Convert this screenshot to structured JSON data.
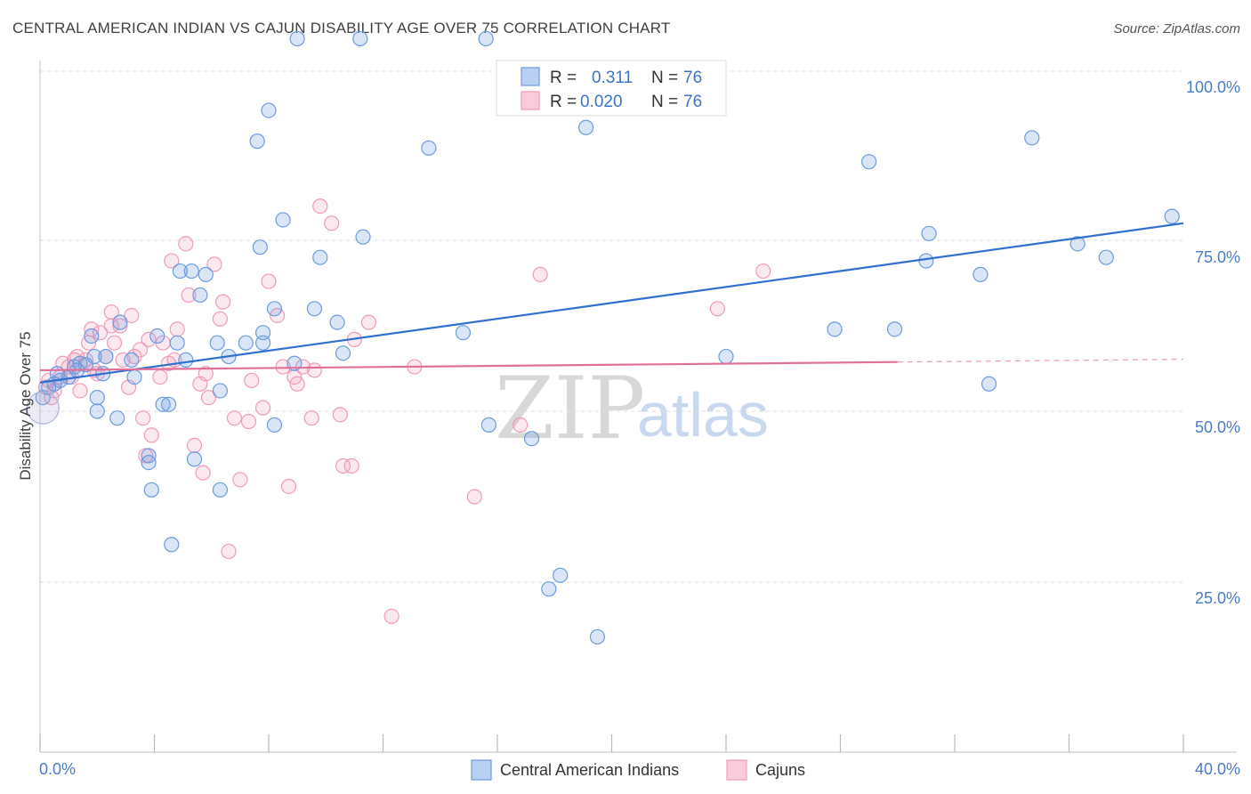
{
  "title": "CENTRAL AMERICAN INDIAN VS CAJUN DISABILITY AGE OVER 75 CORRELATION CHART",
  "source": "Source: ZipAtlas.com",
  "watermark": {
    "zip": "ZIP",
    "atlas": "atlas"
  },
  "legend": {
    "r_label": "R =",
    "n_label": "N =",
    "series": [
      {
        "r": "0.311",
        "n": "76"
      },
      {
        "r": "0.020",
        "n": "76"
      }
    ]
  },
  "bottom_legend": [
    "Central American Indians",
    "Cajuns"
  ],
  "chart_data": {
    "type": "scatter",
    "title": "CENTRAL AMERICAN INDIAN VS CAJUN DISABILITY AGE OVER 75 CORRELATION CHART",
    "xlabel": "",
    "ylabel": "Disability Age Over 75",
    "xlim": [
      0,
      40
    ],
    "ylim": [
      0,
      100
    ],
    "x_tick_labels": [
      "0.0%",
      "40.0%"
    ],
    "y_tick_labels": [
      "100.0%",
      "75.0%",
      "50.0%",
      "25.0%"
    ],
    "y_ticks": [
      100,
      75,
      50,
      25
    ],
    "colors": {
      "blue": "#6b9be0",
      "pink": "#f09ab8",
      "blue_line": "#2f6fcf",
      "pink_line": "#e0709a"
    },
    "series": [
      {
        "name": "Central American Indians",
        "r": 0.311,
        "n": 76,
        "trend": {
          "x0": 0,
          "y0": 54.2,
          "x1": 40,
          "y1": 77.5
        },
        "points": [
          [
            0.3,
            53.5
          ],
          [
            0.5,
            54.0
          ],
          [
            0.6,
            55.5
          ],
          [
            0.7,
            54.5
          ],
          [
            1.0,
            55.0
          ],
          [
            1.2,
            56.5
          ],
          [
            1.3,
            56.0
          ],
          [
            1.4,
            57.0
          ],
          [
            1.6,
            56.8
          ],
          [
            1.8,
            61.0
          ],
          [
            1.9,
            58.0
          ],
          [
            2.0,
            52.0
          ],
          [
            2.0,
            50.0
          ],
          [
            2.2,
            55.5
          ],
          [
            2.3,
            58.0
          ],
          [
            2.7,
            49.0
          ],
          [
            2.8,
            63.0
          ],
          [
            3.2,
            57.5
          ],
          [
            3.3,
            55.0
          ],
          [
            3.8,
            43.5
          ],
          [
            3.8,
            42.5
          ],
          [
            3.9,
            38.5
          ],
          [
            4.1,
            61.0
          ],
          [
            4.3,
            51.0
          ],
          [
            4.5,
            51.0
          ],
          [
            4.6,
            30.5
          ],
          [
            4.8,
            60.0
          ],
          [
            4.9,
            70.5
          ],
          [
            5.1,
            57.5
          ],
          [
            5.3,
            70.5
          ],
          [
            5.4,
            43.0
          ],
          [
            5.6,
            67.0
          ],
          [
            5.8,
            70.0
          ],
          [
            6.2,
            60.0
          ],
          [
            6.3,
            53.0
          ],
          [
            6.3,
            38.5
          ],
          [
            6.6,
            58.0
          ],
          [
            7.2,
            60.0
          ],
          [
            7.6,
            89.5
          ],
          [
            7.7,
            74.0
          ],
          [
            7.8,
            60.0
          ],
          [
            7.8,
            61.5
          ],
          [
            8.0,
            94.0
          ],
          [
            8.2,
            48.0
          ],
          [
            8.2,
            65.0
          ],
          [
            8.5,
            78.0
          ],
          [
            8.9,
            57.0
          ],
          [
            9.0,
            104.5
          ],
          [
            9.6,
            65.0
          ],
          [
            9.8,
            72.5
          ],
          [
            10.4,
            63.0
          ],
          [
            10.6,
            58.5
          ],
          [
            11.2,
            104.5
          ],
          [
            11.3,
            75.5
          ],
          [
            13.6,
            88.5
          ],
          [
            14.8,
            61.5
          ],
          [
            15.6,
            104.5
          ],
          [
            15.7,
            48.0
          ],
          [
            17.2,
            46.0
          ],
          [
            17.8,
            24.0
          ],
          [
            18.2,
            26.0
          ],
          [
            19.1,
            91.5
          ],
          [
            19.5,
            17.0
          ],
          [
            24.0,
            58.0
          ],
          [
            27.8,
            62.0
          ],
          [
            29.0,
            86.5
          ],
          [
            29.9,
            62.0
          ],
          [
            31.0,
            72.0
          ],
          [
            31.1,
            76.0
          ],
          [
            32.9,
            70.0
          ],
          [
            33.2,
            54.0
          ],
          [
            34.7,
            90.0
          ],
          [
            36.3,
            74.5
          ],
          [
            37.3,
            72.5
          ],
          [
            39.6,
            78.5
          ],
          [
            0.1,
            52.0
          ]
        ]
      },
      {
        "name": "Cajuns",
        "r": 0.02,
        "n": 76,
        "trend": {
          "x0": 0,
          "y0": 56.0,
          "x1": 30.0,
          "y1": 57.2,
          "dash_to": 40,
          "dash_y1": 57.6
        },
        "points": [
          [
            0.2,
            53.5
          ],
          [
            0.3,
            54.5
          ],
          [
            0.5,
            53.0
          ],
          [
            0.7,
            55.0
          ],
          [
            0.8,
            57.0
          ],
          [
            1.0,
            56.5
          ],
          [
            1.1,
            55.0
          ],
          [
            1.2,
            57.5
          ],
          [
            1.3,
            58.0
          ],
          [
            1.4,
            53.0
          ],
          [
            1.6,
            57.5
          ],
          [
            1.7,
            60.0
          ],
          [
            1.8,
            62.0
          ],
          [
            1.9,
            56.0
          ],
          [
            2.0,
            55.5
          ],
          [
            2.1,
            61.5
          ],
          [
            2.3,
            58.0
          ],
          [
            2.5,
            62.5
          ],
          [
            2.5,
            64.5
          ],
          [
            2.6,
            60.0
          ],
          [
            2.8,
            62.5
          ],
          [
            2.9,
            57.5
          ],
          [
            3.1,
            53.5
          ],
          [
            3.2,
            64.0
          ],
          [
            3.3,
            58.0
          ],
          [
            3.5,
            59.0
          ],
          [
            3.6,
            49.0
          ],
          [
            3.7,
            43.5
          ],
          [
            3.8,
            60.5
          ],
          [
            3.9,
            46.5
          ],
          [
            4.2,
            55.0
          ],
          [
            4.3,
            60.0
          ],
          [
            4.5,
            57.0
          ],
          [
            4.6,
            72.0
          ],
          [
            4.7,
            57.5
          ],
          [
            4.8,
            62.0
          ],
          [
            5.1,
            74.5
          ],
          [
            5.2,
            67.0
          ],
          [
            5.4,
            45.0
          ],
          [
            5.6,
            54.0
          ],
          [
            5.7,
            41.0
          ],
          [
            5.8,
            55.5
          ],
          [
            5.9,
            52.0
          ],
          [
            6.1,
            71.5
          ],
          [
            6.3,
            63.5
          ],
          [
            6.4,
            66.0
          ],
          [
            6.6,
            29.5
          ],
          [
            6.8,
            49.0
          ],
          [
            7.0,
            40.0
          ],
          [
            7.3,
            48.5
          ],
          [
            7.4,
            54.5
          ],
          [
            7.8,
            50.5
          ],
          [
            8.0,
            69.0
          ],
          [
            8.3,
            64.0
          ],
          [
            8.5,
            56.5
          ],
          [
            8.7,
            39.0
          ],
          [
            8.9,
            55.0
          ],
          [
            9.0,
            54.0
          ],
          [
            9.2,
            56.5
          ],
          [
            9.5,
            49.0
          ],
          [
            9.6,
            56.0
          ],
          [
            9.8,
            80.0
          ],
          [
            10.2,
            77.5
          ],
          [
            10.5,
            49.5
          ],
          [
            10.6,
            42.0
          ],
          [
            10.9,
            42.0
          ],
          [
            11.0,
            60.5
          ],
          [
            11.5,
            63.0
          ],
          [
            12.3,
            20.0
          ],
          [
            13.1,
            56.5
          ],
          [
            15.2,
            37.5
          ],
          [
            16.8,
            48.0
          ],
          [
            17.5,
            70.0
          ],
          [
            23.7,
            65.0
          ],
          [
            25.3,
            70.5
          ],
          [
            0.4,
            52.0
          ]
        ]
      }
    ]
  }
}
